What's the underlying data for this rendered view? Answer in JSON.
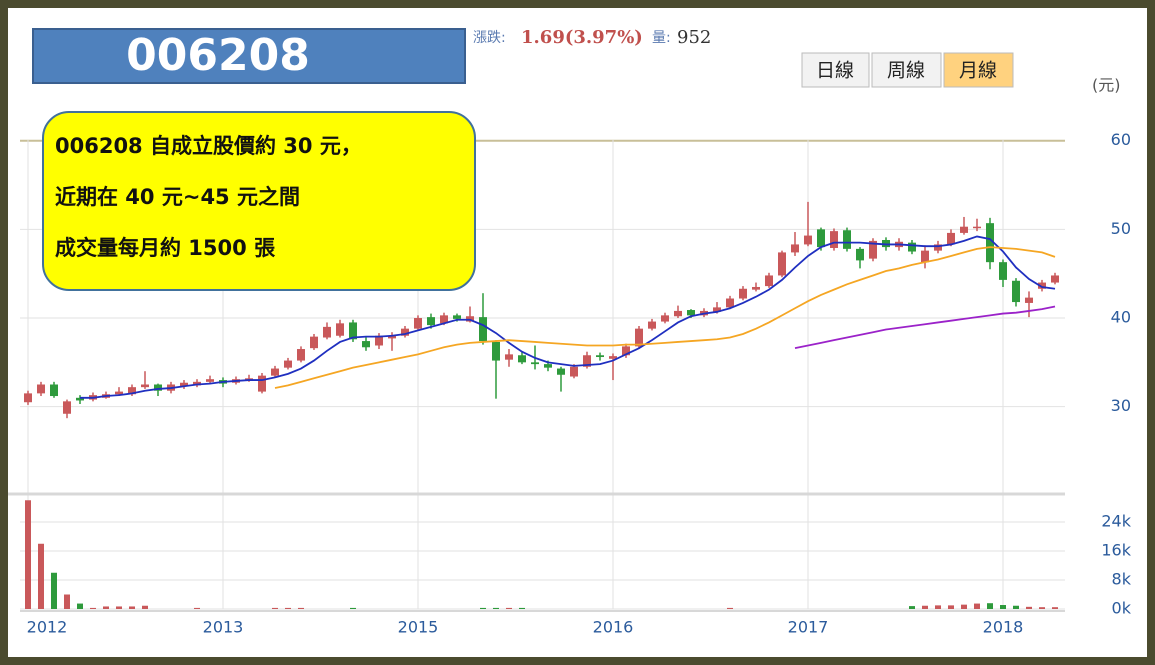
{
  "header": {
    "change_label": "漲跌:",
    "change": "1.69(3.97%)",
    "volume_label": "量:",
    "volume": "952"
  },
  "buttons": [
    "日線",
    "周線",
    "月線"
  ],
  "unit": "(元)",
  "title_box": "006208",
  "callout": [
    "006208 自成立股價約 30 元，",
    "近期在 40 元~45 元之間",
    "成交量每月約 1500 張"
  ],
  "chart_data": {
    "type": "candlestick",
    "categories": [
      "2012",
      null,
      null,
      null,
      null,
      null,
      null,
      null,
      null,
      null,
      null,
      null,
      null,
      null,
      null,
      "2013",
      null,
      null,
      null,
      null,
      null,
      null,
      null,
      null,
      null,
      null,
      null,
      null,
      null,
      null,
      "2015",
      null,
      null,
      null,
      null,
      null,
      null,
      null,
      null,
      null,
      null,
      null,
      null,
      null,
      null,
      "2016",
      null,
      null,
      null,
      null,
      null,
      null,
      null,
      null,
      null,
      null,
      null,
      null,
      null,
      null,
      "2017",
      null,
      null,
      null,
      null,
      null,
      null,
      null,
      null,
      null,
      null,
      null,
      null,
      null,
      null,
      "2018",
      null,
      null,
      null,
      null
    ],
    "open": [
      30.5,
      31.5,
      32.5,
      29.2,
      31,
      30.8,
      31,
      31.4,
      31.4,
      32.2,
      32.5,
      31.8,
      32.3,
      32.4,
      32.8,
      33,
      32.7,
      33,
      31.7,
      33.5,
      34.4,
      35.2,
      36.6,
      37.8,
      38,
      39.5,
      37.4,
      36.9,
      37.7,
      38,
      38.8,
      40.1,
      39.4,
      40.3,
      39.6,
      40.1,
      37.3,
      35.3,
      35.8,
      35,
      34.8,
      34.3,
      33.4,
      34.5,
      35.8,
      35.4,
      35.8,
      36.8,
      38.8,
      39.6,
      40.2,
      40.9,
      40.3,
      40.7,
      41.2,
      42.2,
      43.2,
      43.6,
      44.8,
      47.4,
      48.3,
      50,
      47.9,
      49.9,
      47.8,
      46.7,
      48.8,
      48,
      48.5,
      46.3,
      47.6,
      48.3,
      49.6,
      50.2,
      50.7,
      46.3,
      44.2,
      41.7,
      43.3,
      44
    ],
    "high": [
      31.8,
      32.8,
      32.8,
      30.8,
      31.3,
      31.6,
      31.7,
      32.2,
      32.5,
      34,
      32.6,
      32.8,
      33,
      33.1,
      33.5,
      33.3,
      33.4,
      33.6,
      33.8,
      34.6,
      35.5,
      36.8,
      38.2,
      39.5,
      39.8,
      39.8,
      37.8,
      38.3,
      38.4,
      39.1,
      40.3,
      40.5,
      40.6,
      40.5,
      41.3,
      42.8,
      37.5,
      36.5,
      36.2,
      36.9,
      35.2,
      34.5,
      34.8,
      36.2,
      36.1,
      36,
      37.1,
      39.1,
      39.9,
      40.6,
      41.4,
      41,
      41.1,
      41.8,
      42.5,
      43.6,
      44,
      45.1,
      47.6,
      49.7,
      53.1,
      50.2,
      50.1,
      50.2,
      48,
      49,
      49.1,
      49,
      48.8,
      48.2,
      48.7,
      50,
      51.4,
      51.2,
      51.3,
      46.6,
      44.5,
      43,
      44.3,
      45.1
    ],
    "low": [
      30.2,
      31.2,
      31,
      28.7,
      30.3,
      30.6,
      30.9,
      31.2,
      31.2,
      32,
      31.2,
      31.5,
      32,
      32.2,
      32.6,
      32.2,
      32.5,
      32.8,
      31.5,
      33.3,
      34.2,
      35,
      36.4,
      37.6,
      37.8,
      37.3,
      36.3,
      36.5,
      36.3,
      37.8,
      38.6,
      38.8,
      39.2,
      39.6,
      39.5,
      37,
      30.9,
      34.5,
      34.8,
      34.2,
      34,
      31.7,
      33.2,
      34.3,
      35.2,
      33,
      35.5,
      36.5,
      38.6,
      39.4,
      40,
      40,
      40.1,
      40.5,
      41,
      42,
      43,
      43.4,
      44.6,
      47,
      48.1,
      47.6,
      47.6,
      47.5,
      45.6,
      46.4,
      47.6,
      47.6,
      47.2,
      45.6,
      47.3,
      48.1,
      49.4,
      49.8,
      45.5,
      43.5,
      41.3,
      40.1,
      43,
      43.8
    ],
    "close": [
      31.5,
      32.5,
      31.2,
      30.6,
      30.7,
      31.3,
      31.4,
      31.7,
      32.2,
      32.5,
      31.8,
      32.5,
      32.7,
      32.8,
      33.1,
      32.6,
      33.1,
      33.2,
      33.5,
      34.3,
      35.2,
      36.5,
      37.9,
      39,
      39.4,
      37.6,
      36.7,
      38,
      38,
      38.8,
      40,
      39.2,
      40.3,
      39.9,
      40.2,
      37.4,
      35.2,
      35.9,
      35,
      34.8,
      34.4,
      33.6,
      34.5,
      35.8,
      35.6,
      35.7,
      36.8,
      38.8,
      39.6,
      40.3,
      40.8,
      40.3,
      40.8,
      41.2,
      42.2,
      43.3,
      43.5,
      44.8,
      47.4,
      48.3,
      49.3,
      48,
      49.8,
      47.8,
      46.5,
      48.7,
      48,
      48.6,
      47.5,
      47.6,
      48.3,
      49.6,
      50.3,
      50.3,
      46.3,
      44.3,
      41.8,
      42.3,
      44,
      44.8
    ],
    "up_color": "#c9585a",
    "down_color": "#2e9a3c",
    "series": [
      {
        "color": "#1f2fc0",
        "values": [
          null,
          null,
          null,
          null,
          31,
          31,
          31.2,
          31.3,
          31.5,
          31.8,
          32,
          32.1,
          32.3,
          32.5,
          32.6,
          32.8,
          32.9,
          33,
          33,
          33.3,
          33.7,
          34.3,
          35.2,
          36.3,
          37.3,
          37.8,
          37.9,
          37.9,
          38,
          38.2,
          38.6,
          39,
          39.4,
          39.8,
          39.8,
          39.2,
          38.3,
          37.2,
          36.2,
          35.5,
          35,
          34.8,
          34.6,
          34.7,
          34.8,
          35.2,
          35.9,
          36.6,
          37.5,
          38.5,
          39.5,
          40.2,
          40.5,
          40.7,
          41.1,
          41.7,
          42.4,
          43.2,
          44.3,
          45.7,
          47,
          48,
          48.5,
          48.5,
          48.5,
          48.4,
          48.3,
          48.3,
          48.2,
          48.1,
          48.1,
          48.3,
          48.7,
          49.2,
          48.9,
          47.5,
          45.7,
          44.4,
          43.5,
          43.3
        ]
      },
      {
        "color": "#f5a623",
        "values": [
          null,
          null,
          null,
          null,
          null,
          null,
          null,
          null,
          null,
          null,
          null,
          null,
          null,
          null,
          null,
          null,
          null,
          null,
          null,
          32.1,
          32.4,
          32.8,
          33.2,
          33.6,
          34,
          34.4,
          34.7,
          35,
          35.3,
          35.6,
          35.9,
          36.3,
          36.7,
          37,
          37.2,
          37.3,
          37.4,
          37.5,
          37.4,
          37.3,
          37.2,
          37.1,
          37,
          36.9,
          36.9,
          36.9,
          37,
          37,
          37.1,
          37.2,
          37.3,
          37.4,
          37.5,
          37.6,
          37.8,
          38.2,
          38.8,
          39.5,
          40.3,
          41.1,
          41.9,
          42.6,
          43.2,
          43.8,
          44.3,
          44.8,
          45.3,
          45.6,
          46,
          46.3,
          46.6,
          47,
          47.4,
          47.8,
          48,
          47.9,
          47.8,
          47.6,
          47.4,
          46.9
        ]
      },
      {
        "color": "#9b22c9",
        "values": [
          null,
          null,
          null,
          null,
          null,
          null,
          null,
          null,
          null,
          null,
          null,
          null,
          null,
          null,
          null,
          null,
          null,
          null,
          null,
          null,
          null,
          null,
          null,
          null,
          null,
          null,
          null,
          null,
          null,
          null,
          null,
          null,
          null,
          null,
          null,
          null,
          null,
          null,
          null,
          null,
          null,
          null,
          null,
          null,
          null,
          null,
          null,
          null,
          null,
          null,
          null,
          null,
          null,
          null,
          null,
          null,
          null,
          null,
          null,
          36.6,
          36.9,
          37.2,
          37.5,
          37.8,
          38.1,
          38.4,
          38.7,
          38.9,
          39.1,
          39.3,
          39.5,
          39.7,
          39.9,
          40.1,
          40.3,
          40.5,
          40.6,
          40.8,
          41,
          41.3
        ]
      }
    ],
    "ylim": [
      20.6,
      62.9
    ],
    "yticks": [
      30,
      40,
      50,
      60
    ],
    "grid": true,
    "volume": {
      "values": [
        30000,
        18000,
        10000,
        4000,
        1500,
        300,
        700,
        700,
        700,
        900,
        0,
        0,
        0,
        300,
        0,
        0,
        0,
        0,
        0,
        300,
        300,
        300,
        0,
        0,
        0,
        300,
        0,
        0,
        0,
        0,
        0,
        0,
        0,
        0,
        0,
        300,
        300,
        300,
        300,
        0,
        0,
        0,
        0,
        0,
        0,
        0,
        0,
        0,
        0,
        0,
        0,
        0,
        0,
        0,
        300,
        0,
        0,
        0,
        0,
        0,
        0,
        0,
        0,
        0,
        0,
        0,
        0,
        0,
        800,
        900,
        1000,
        1000,
        1200,
        1500,
        1600,
        1100,
        900,
        600,
        500,
        500
      ],
      "ylim": [
        0,
        30900
      ],
      "yticks": [
        {
          "value": 0,
          "label": "0k"
        },
        {
          "value": 8000,
          "label": "8k"
        },
        {
          "value": 16000,
          "label": "16k"
        },
        {
          "value": 24000,
          "label": "24k"
        }
      ]
    }
  }
}
